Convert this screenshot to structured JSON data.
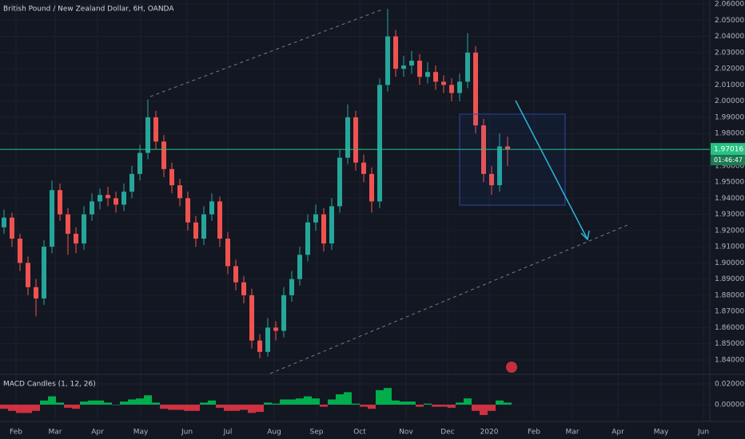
{
  "chart_data": {
    "type": "candlestick",
    "title": "British Pound / New Zealand Dollar, 6H, OANDA",
    "up_color": "#26a69a",
    "down_color": "#ef5350",
    "grid": true,
    "open": [
      1.922,
      1.928,
      1.915,
      1.9,
      1.885,
      1.878,
      1.91,
      1.945,
      1.93,
      1.918,
      1.912,
      1.93,
      1.938,
      1.942,
      1.94,
      1.936,
      1.944,
      1.955,
      1.968,
      1.99,
      1.975,
      1.958,
      1.948,
      1.94,
      1.925,
      1.915,
      1.93,
      1.938,
      1.915,
      1.898,
      1.888,
      1.88,
      1.852,
      1.845,
      1.86,
      1.858,
      1.88,
      1.89,
      1.905,
      1.925,
      1.93,
      1.912,
      1.935,
      1.965,
      1.99,
      1.962,
      1.955,
      1.938,
      2.01,
      2.04,
      2.02,
      2.022,
      2.025,
      2.015,
      2.018,
      2.012,
      2.01,
      2.005,
      2.012,
      2.03,
      1.985,
      1.955,
      1.948,
      1.972
    ],
    "high": [
      1.933,
      1.931,
      1.918,
      1.904,
      1.89,
      1.914,
      1.951,
      1.949,
      1.934,
      1.922,
      1.935,
      1.943,
      1.946,
      1.947,
      1.944,
      1.949,
      1.96,
      1.973,
      2.001,
      1.994,
      1.979,
      1.962,
      1.952,
      1.944,
      1.929,
      1.935,
      1.943,
      1.941,
      1.919,
      1.902,
      1.892,
      1.884,
      1.856,
      1.866,
      1.864,
      1.885,
      1.895,
      1.91,
      1.93,
      1.936,
      1.934,
      1.94,
      1.97,
      1.998,
      1.994,
      1.967,
      1.959,
      2.014,
      2.057,
      2.044,
      2.028,
      2.031,
      2.029,
      2.024,
      2.022,
      2.016,
      2.014,
      2.017,
      2.042,
      2.034,
      1.989,
      1.96,
      1.98,
      1.978
    ],
    "low": [
      1.918,
      1.91,
      1.895,
      1.88,
      1.867,
      1.874,
      1.906,
      1.926,
      1.905,
      1.906,
      1.908,
      1.926,
      1.933,
      1.935,
      1.931,
      1.932,
      1.94,
      1.951,
      1.964,
      1.97,
      1.953,
      1.943,
      1.935,
      1.92,
      1.91,
      1.911,
      1.926,
      1.91,
      1.893,
      1.883,
      1.875,
      1.847,
      1.841,
      1.842,
      1.852,
      1.854,
      1.876,
      1.886,
      1.901,
      1.92,
      1.907,
      1.908,
      1.931,
      1.961,
      1.957,
      1.95,
      1.931,
      1.934,
      2.006,
      2.015,
      2.015,
      2.017,
      2.01,
      2.011,
      2.007,
      2.005,
      2.0,
      2.0,
      2.008,
      1.98,
      1.95,
      1.942,
      1.944,
      1.96
    ],
    "close": [
      1.928,
      1.915,
      1.9,
      1.885,
      1.878,
      1.91,
      1.945,
      1.93,
      1.918,
      1.912,
      1.93,
      1.938,
      1.942,
      1.94,
      1.936,
      1.944,
      1.955,
      1.968,
      1.99,
      1.975,
      1.958,
      1.948,
      1.94,
      1.925,
      1.915,
      1.93,
      1.938,
      1.915,
      1.898,
      1.888,
      1.88,
      1.852,
      1.845,
      1.86,
      1.858,
      1.88,
      1.89,
      1.905,
      1.925,
      1.93,
      1.912,
      1.935,
      1.965,
      1.99,
      1.962,
      1.955,
      1.938,
      2.01,
      2.04,
      2.02,
      2.022,
      2.025,
      2.015,
      2.018,
      2.012,
      2.01,
      2.005,
      2.012,
      2.03,
      1.985,
      1.955,
      1.948,
      1.972,
      1.97
    ],
    "ylim": [
      1.8316,
      2.0625
    ],
    "yticks": [
      {
        "value": 1.84,
        "label": "1.84000"
      },
      {
        "value": 1.85,
        "label": "1.85000"
      },
      {
        "value": 1.86,
        "label": "1.86000"
      },
      {
        "value": 1.87,
        "label": "1.87000"
      },
      {
        "value": 1.88,
        "label": "1.88000"
      },
      {
        "value": 1.89,
        "label": "1.89000"
      },
      {
        "value": 1.9,
        "label": "1.90000"
      },
      {
        "value": 1.91,
        "label": "1.91000"
      },
      {
        "value": 1.92,
        "label": "1.92000"
      },
      {
        "value": 1.93,
        "label": "1.93000"
      },
      {
        "value": 1.94,
        "label": "1.94000"
      },
      {
        "value": 1.95,
        "label": "1.95000"
      },
      {
        "value": 1.96,
        "label": "1.96000"
      },
      {
        "value": 1.97,
        "label": "1.97000"
      },
      {
        "value": 1.98,
        "label": "1.98000"
      },
      {
        "value": 1.99,
        "label": "1.99000"
      },
      {
        "value": 2.0,
        "label": "2.00000"
      },
      {
        "value": 2.01,
        "label": "2.01000"
      },
      {
        "value": 2.02,
        "label": "2.02000"
      },
      {
        "value": 2.03,
        "label": "2.03000"
      },
      {
        "value": 2.04,
        "label": "2.04000"
      },
      {
        "value": 2.05,
        "label": "2.05000"
      },
      {
        "value": 2.06,
        "label": "2.06000"
      }
    ],
    "xticks": [
      "Feb",
      "Mar",
      "Apr",
      "May",
      "Jun",
      "Jul",
      "Aug",
      "Sep",
      "Oct",
      "Nov",
      "Dec",
      "2020",
      "Feb",
      "Mar",
      "Apr",
      "May",
      "Jun"
    ],
    "last_price": 1.97016,
    "countdown": "01:46:47",
    "indicator": {
      "title": "MACD Candles (1, 12, 26)",
      "positive_color": "#00c853",
      "negative_color": "#f23645",
      "values": [
        -0.004,
        -0.006,
        -0.008,
        -0.008,
        -0.006,
        0.004,
        0.008,
        0.002,
        -0.003,
        -0.004,
        0.003,
        0.004,
        0.004,
        0.002,
        0.0,
        0.003,
        0.005,
        0.006,
        0.009,
        0.002,
        -0.004,
        -0.005,
        -0.005,
        -0.006,
        -0.006,
        0.002,
        0.004,
        -0.003,
        -0.006,
        -0.006,
        -0.005,
        -0.008,
        -0.007,
        0.002,
        0.001,
        0.005,
        0.005,
        0.006,
        0.008,
        0.006,
        -0.002,
        0.005,
        0.01,
        0.012,
        0.001,
        -0.002,
        -0.004,
        0.014,
        0.016,
        0.004,
        0.003,
        0.003,
        -0.002,
        0.001,
        -0.002,
        -0.002,
        -0.003,
        0.002,
        0.006,
        -0.006,
        -0.01,
        -0.006,
        0.004,
        0.002
      ],
      "ylim": [
        -0.0131,
        0.0269
      ],
      "yticks": [
        {
          "value": 0.02,
          "label": "0.020000"
        },
        {
          "value": 0,
          "label": "0.000000"
        }
      ]
    }
  }
}
